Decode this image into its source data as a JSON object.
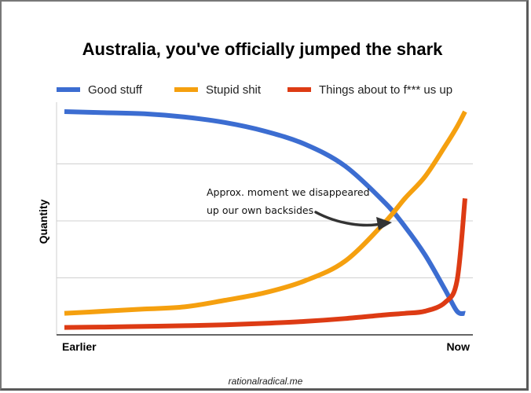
{
  "footer": "rationalradical.me",
  "chart_data": {
    "type": "line",
    "title": "Australia, you've officially jumped the shark",
    "xlabel": "",
    "ylabel": "Quantity",
    "x_tick_labels": [
      "Earlier",
      "Now"
    ],
    "x": [
      0,
      10,
      20,
      30,
      40,
      50,
      60,
      70,
      80,
      85,
      90,
      95,
      98,
      100
    ],
    "ylim": [
      0,
      100
    ],
    "grid": true,
    "legend_position": "top",
    "annotation": [
      "Approx. moment we disappeared",
      "up our own backsides"
    ],
    "series": [
      {
        "name": "Good stuff",
        "color": "#3c6dd1",
        "values": [
          100,
          99.5,
          99,
          97.5,
          95,
          91,
          85,
          75,
          58,
          47,
          34,
          18,
          8,
          7
        ]
      },
      {
        "name": "Stupid shit",
        "color": "#f5a00f",
        "values": [
          7,
          8,
          9,
          10,
          13,
          16.5,
          22,
          31,
          49,
          60,
          70,
          84,
          93,
          100
        ]
      },
      {
        "name": "Things about to f*** us up",
        "color": "#dd3b14",
        "values": [
          0.5,
          0.7,
          1,
          1.3,
          1.7,
          2.4,
          3.3,
          4.6,
          6.3,
          7,
          8,
          12,
          22,
          60
        ]
      }
    ]
  }
}
